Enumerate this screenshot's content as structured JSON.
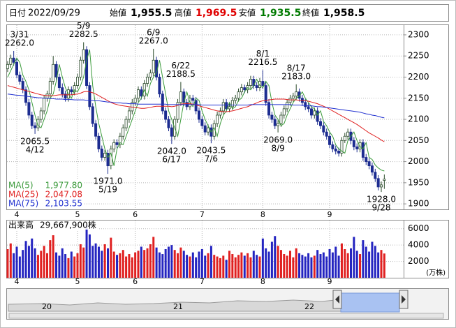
{
  "chart_data": {
    "type": "candlestick",
    "header": {
      "date_label": "日付",
      "date": "2022/09/29",
      "items": [
        {
          "label": "始値",
          "value": "1,955.5",
          "color": "#000000"
        },
        {
          "label": "高値",
          "value": "1,969.5",
          "color": "#e00000"
        },
        {
          "label": "安値",
          "value": "1,935.5",
          "color": "#007a00"
        },
        {
          "label": "終値",
          "value": "1,958.5",
          "color": "#000000"
        }
      ]
    },
    "categories": [
      null,
      null,
      null,
      "4",
      null,
      null,
      null,
      null,
      null,
      null,
      null,
      null,
      null,
      null,
      null,
      null,
      null,
      null,
      null,
      null,
      null,
      null,
      null,
      "5",
      null,
      null,
      null,
      null,
      null,
      null,
      null,
      null,
      null,
      null,
      null,
      null,
      null,
      null,
      null,
      null,
      null,
      null,
      "6",
      null,
      null,
      null,
      null,
      null,
      null,
      null,
      null,
      null,
      null,
      null,
      null,
      null,
      null,
      null,
      null,
      null,
      null,
      null,
      null,
      null,
      "7",
      null,
      null,
      null,
      null,
      null,
      null,
      null,
      null,
      null,
      null,
      null,
      null,
      null,
      null,
      null,
      null,
      null,
      null,
      null,
      "8",
      null,
      null,
      null,
      null,
      null,
      null,
      null,
      null,
      null,
      null,
      null,
      null,
      null,
      null,
      null,
      null,
      null,
      null,
      null,
      null,
      null,
      "9",
      null,
      null,
      null,
      null,
      null,
      null,
      null,
      null,
      null,
      null,
      null,
      null,
      null,
      null,
      null,
      null,
      null,
      null
    ],
    "open": [
      2220,
      2230,
      2245,
      2235,
      2205,
      2190,
      2170,
      2140,
      2110,
      2085,
      2080,
      2100,
      2120,
      2150,
      2160,
      2190,
      2230,
      2200,
      2175,
      2160,
      2150,
      2170,
      2165,
      2180,
      2200,
      2240,
      2265,
      2180,
      2130,
      2090,
      2060,
      2030,
      2010,
      2020,
      1990,
      2030,
      2045,
      2040,
      2060,
      2080,
      2100,
      2120,
      2140,
      2150,
      2170,
      2155,
      2185,
      2200,
      2210,
      2240,
      2200,
      2160,
      2120,
      2100,
      2080,
      2060,
      2100,
      2140,
      2165,
      2140,
      2130,
      2150,
      2145,
      2120,
      2100,
      2085,
      2070,
      2080,
      2060,
      2090,
      2110,
      2120,
      2140,
      2125,
      2130,
      2145,
      2150,
      2165,
      2175,
      2170,
      2180,
      2195,
      2180,
      2175,
      2190,
      2180,
      2140,
      2110,
      2100,
      2085,
      2090,
      2110,
      2125,
      2140,
      2150,
      2155,
      2165,
      2150,
      2140,
      2130,
      2125,
      2110,
      2120,
      2095,
      2085,
      2070,
      2060,
      2040,
      2030,
      2025,
      2020,
      2050,
      2060,
      2070,
      2050,
      2035,
      2030,
      2045,
      2010,
      2000,
      1990,
      1975,
      1960,
      1940,
      1955.5
    ],
    "high": [
      2238,
      2253,
      2262.0,
      2243,
      2213,
      2198,
      2178,
      2148,
      2118,
      2093,
      2108,
      2128,
      2158,
      2168,
      2198,
      2250,
      2238,
      2208,
      2185,
      2168,
      2178,
      2178,
      2188,
      2208,
      2248,
      2282.5,
      2273,
      2188,
      2138,
      2098,
      2068,
      2038,
      2028,
      2028,
      2038,
      2053,
      2053,
      2068,
      2088,
      2108,
      2128,
      2148,
      2158,
      2178,
      2178,
      2193,
      2208,
      2218,
      2267.0,
      2248,
      2208,
      2168,
      2128,
      2108,
      2088,
      2108,
      2148,
      2188.5,
      2173,
      2148,
      2158,
      2158,
      2153,
      2128,
      2108,
      2093,
      2088,
      2088,
      2098,
      2118,
      2128,
      2148,
      2148,
      2138,
      2153,
      2158,
      2173,
      2184,
      2182,
      2188,
      2203,
      2203,
      2188,
      2198,
      2216.5,
      2188,
      2148,
      2118,
      2108,
      2098,
      2118,
      2133,
      2148,
      2158,
      2163,
      2183.0,
      2173,
      2158,
      2148,
      2138,
      2133,
      2128,
      2128,
      2103,
      2093,
      2078,
      2068,
      2048,
      2038,
      2033,
      2058,
      2068,
      2078,
      2078,
      2058,
      2043,
      2053,
      2053,
      2018,
      2008,
      1998,
      1983,
      1968,
      1953,
      1969.5
    ],
    "low": [
      2212,
      2222,
      2227,
      2197,
      2182,
      2162,
      2132,
      2102,
      2077,
      2065.5,
      2072,
      2092,
      2112,
      2142,
      2152,
      2182,
      2192,
      2167,
      2152,
      2142,
      2142,
      2157,
      2157,
      2172,
      2192,
      2232,
      2172,
      2122,
      2082,
      2052,
      2022,
      2002,
      2002,
      1971.0,
      1982,
      2022,
      2032,
      2032,
      2052,
      2072,
      2092,
      2112,
      2132,
      2142,
      2147,
      2147,
      2177,
      2192,
      2202,
      2192,
      2152,
      2112,
      2092,
      2072,
      2042.0,
      2052,
      2092,
      2132,
      2132,
      2122,
      2122,
      2137,
      2112,
      2092,
      2077,
      2062,
      2062,
      2043.5,
      2052,
      2082,
      2102,
      2112,
      2117,
      2117,
      2122,
      2137,
      2142,
      2157,
      2162,
      2162,
      2172,
      2172,
      2167,
      2167,
      2172,
      2132,
      2102,
      2092,
      2077,
      2069.0,
      2082,
      2102,
      2117,
      2132,
      2142,
      2147,
      2142,
      2132,
      2122,
      2117,
      2102,
      2102,
      2087,
      2077,
      2062,
      2052,
      2032,
      2022,
      2017,
      2012,
      2012,
      2044,
      2052,
      2041,
      2027,
      2022,
      2022,
      2002,
      1992,
      1982,
      1967,
      1952,
      1932,
      1928.0,
      1935.5
    ],
    "close": [
      2230,
      2245,
      2235,
      2205,
      2190,
      2170,
      2140,
      2110,
      2085,
      2080,
      2100,
      2120,
      2150,
      2160,
      2190,
      2230,
      2200,
      2175,
      2160,
      2150,
      2170,
      2165,
      2180,
      2200,
      2240,
      2265,
      2180,
      2130,
      2090,
      2060,
      2030,
      2010,
      2020,
      1990,
      2030,
      2045,
      2040,
      2060,
      2080,
      2100,
      2120,
      2140,
      2150,
      2170,
      2155,
      2185,
      2200,
      2210,
      2240,
      2200,
      2160,
      2120,
      2100,
      2080,
      2060,
      2100,
      2140,
      2165,
      2140,
      2130,
      2150,
      2145,
      2120,
      2100,
      2085,
      2070,
      2080,
      2060,
      2090,
      2110,
      2120,
      2140,
      2125,
      2130,
      2145,
      2150,
      2165,
      2175,
      2170,
      2180,
      2195,
      2180,
      2175,
      2190,
      2180,
      2140,
      2110,
      2100,
      2085,
      2090,
      2110,
      2125,
      2140,
      2150,
      2155,
      2165,
      2150,
      2140,
      2130,
      2125,
      2110,
      2120,
      2095,
      2085,
      2070,
      2060,
      2040,
      2030,
      2025,
      2020,
      2050,
      2060,
      2070,
      2050,
      2035,
      2030,
      2045,
      2010,
      2000,
      1990,
      1975,
      1960,
      1940,
      1945,
      1958.5
    ],
    "up_color": "#2a4a2a",
    "down_color": "#1c2c90",
    "ylim": [
      1887,
      2323
    ],
    "yticks": [
      1900,
      1950,
      2000,
      2050,
      2100,
      2150,
      2200,
      2250,
      2300
    ],
    "grid": true,
    "moving_averages": [
      {
        "name": "MA(5)",
        "color": "#3a9a3a",
        "current": "1,977.80",
        "values": [
          2200,
          2215,
          2230,
          2245,
          2235,
          2205,
          2190,
          2170,
          2140,
          2110,
          2085,
          2080,
          2100,
          2120,
          2150,
          2160,
          2190,
          2230,
          2200,
          2175,
          2160,
          2150,
          2170,
          2165,
          2180,
          2200,
          2240,
          2265,
          2180,
          2130,
          2090,
          2060,
          2030,
          2010,
          2020,
          1990,
          2030,
          2045,
          2040,
          2060,
          2080,
          2100,
          2120,
          2140,
          2150,
          2170,
          2155,
          2185,
          2200,
          2210,
          2240,
          2200,
          2160,
          2120,
          2100,
          2080,
          2060,
          2100,
          2140,
          2165,
          2140,
          2130,
          2150,
          2145,
          2120,
          2100,
          2085,
          2070,
          2080,
          2060,
          2090,
          2110,
          2120,
          2140,
          2125,
          2130,
          2145,
          2150,
          2165,
          2175,
          2170,
          2180,
          2195,
          2180,
          2175,
          2190,
          2180,
          2140,
          2110,
          2100,
          2085,
          2090,
          2110,
          2125,
          2140,
          2150,
          2155,
          2165,
          2150,
          2140,
          2130,
          2125,
          2110,
          2120,
          2095,
          2085,
          2070,
          2060,
          2040,
          2030,
          2025,
          2020,
          2050,
          2060,
          2070,
          2050,
          2035,
          2030,
          2045,
          2010,
          2005,
          1992,
          1985,
          1980,
          1977.8
        ]
      },
      {
        "name": "MA(25)",
        "color": "#e02020",
        "current": "2,047.08",
        "values": [
          2180,
          2178,
          2176,
          2174,
          2172,
          2170,
          2168,
          2166,
          2164,
          2162,
          2160,
          2158,
          2157,
          2156,
          2156,
          2156,
          2157,
          2158,
          2158,
          2158,
          2158,
          2158,
          2159,
          2160,
          2162,
          2165,
          2166,
          2165,
          2163,
          2160,
          2156,
          2152,
          2148,
          2144,
          2140,
          2137,
          2135,
          2133,
          2132,
          2131,
          2130,
          2129,
          2128,
          2127,
          2126,
          2126,
          2127,
          2128,
          2130,
          2131,
          2131,
          2131,
          2131,
          2131,
          2130,
          2131,
          2133,
          2136,
          2137,
          2137,
          2137,
          2136,
          2134,
          2132,
          2130,
          2128,
          2126,
          2124,
          2122,
          2120,
          2119,
          2118,
          2118,
          2119,
          2120,
          2122,
          2124,
          2126,
          2128,
          2130,
          2133,
          2136,
          2139,
          2142,
          2144,
          2145,
          2146,
          2147,
          2148,
          2148,
          2148,
          2148,
          2147,
          2146,
          2146,
          2146,
          2145,
          2145,
          2144,
          2143,
          2141,
          2139,
          2137,
          2134,
          2131,
          2128,
          2124,
          2120,
          2116,
          2112,
          2108,
          2104,
          2100,
          2096,
          2092,
          2088,
          2083,
          2078,
          2073,
          2068,
          2064,
          2060,
          2056,
          2051,
          2047.08
        ]
      },
      {
        "name": "MA(75)",
        "color": "#2030d0",
        "current": "2,103.55",
        "values": [
          2160,
          2159,
          2158,
          2157,
          2157,
          2156,
          2155,
          2154,
          2153,
          2152,
          2151,
          2151,
          2150,
          2150,
          2149,
          2149,
          2148,
          2148,
          2148,
          2147,
          2147,
          2147,
          2146,
          2146,
          2146,
          2146,
          2145,
          2145,
          2145,
          2144,
          2144,
          2143,
          2142,
          2141,
          2141,
          2140,
          2139,
          2139,
          2138,
          2138,
          2137,
          2137,
          2137,
          2136,
          2136,
          2136,
          2136,
          2136,
          2136,
          2136,
          2136,
          2136,
          2136,
          2135,
          2135,
          2135,
          2135,
          2135,
          2135,
          2135,
          2135,
          2135,
          2135,
          2135,
          2134,
          2134,
          2134,
          2134,
          2134,
          2134,
          2134,
          2134,
          2134,
          2134,
          2134,
          2134,
          2134,
          2134,
          2134,
          2134,
          2135,
          2135,
          2135,
          2135,
          2135,
          2135,
          2135,
          2135,
          2135,
          2135,
          2135,
          2135,
          2135,
          2135,
          2134,
          2134,
          2134,
          2133,
          2133,
          2132,
          2132,
          2131,
          2130,
          2130,
          2129,
          2128,
          2127,
          2126,
          2125,
          2124,
          2123,
          2122,
          2121,
          2120,
          2119,
          2118,
          2117,
          2115,
          2113,
          2112,
          2110,
          2109,
          2107,
          2105,
          2103.55
        ]
      }
    ],
    "annotations": [
      {
        "date": "3/31",
        "value": 2262.0,
        "value_label": "2262.0"
      },
      {
        "date": "4/12",
        "value": 2065.5,
        "value_label": "2065.5"
      },
      {
        "date": "5/9",
        "value": 2282.5,
        "value_label": "2282.5"
      },
      {
        "date": "5/19",
        "value": 1971.0,
        "value_label": "1971.0"
      },
      {
        "date": "6/9",
        "value": 2267.0,
        "value_label": "2267.0"
      },
      {
        "date": "6/17",
        "value": 2042.0,
        "value_label": "2042.0"
      },
      {
        "date": "6/22",
        "value": 2188.5,
        "value_label": "2188.5"
      },
      {
        "date": "7/6",
        "value": 2043.5,
        "value_label": "2043.5"
      },
      {
        "date": "8/1",
        "value": 2216.5,
        "value_label": "2216.5"
      },
      {
        "date": "8/9",
        "value": 2069.0,
        "value_label": "2069.0"
      },
      {
        "date": "8/17",
        "value": 2183.0,
        "value_label": "2183.0"
      },
      {
        "date": "9/28",
        "value": 1928.0,
        "value_label": "1928.0"
      }
    ],
    "volume": {
      "title": "出来高",
      "current": "29,667,900株",
      "unit": "(万株)",
      "up_color": "#e02020",
      "down_color": "#2424c0",
      "ylim": [
        0,
        7000
      ],
      "yticks": [
        2000,
        4000,
        6000
      ],
      "values": [
        3500,
        4200,
        3000,
        3800,
        2600,
        3400,
        4500,
        3900,
        4800,
        3600,
        2800,
        3300,
        3900,
        3000,
        4600,
        5200,
        3100,
        2700,
        3600,
        2900,
        2400,
        3200,
        2600,
        3000,
        4100,
        3700,
        6500,
        5300,
        3900,
        4200,
        3800,
        3300,
        4100,
        3600,
        4900,
        3200,
        2800,
        3000,
        3400,
        2600,
        2900,
        2500,
        3100,
        3300,
        3800,
        3400,
        3600,
        4100,
        5000,
        3700,
        3100,
        2900,
        3500,
        3800,
        4000,
        3400,
        3000,
        3700,
        3300,
        2800,
        2600,
        3100,
        2500,
        3200,
        3500,
        2700,
        3000,
        3900,
        2800,
        2600,
        2400,
        2700,
        2200,
        3300,
        2900,
        2500,
        2800,
        3100,
        2700,
        3000,
        2500,
        3300,
        2800,
        2600,
        4800,
        3600,
        3200,
        4400,
        5100,
        3900,
        3400,
        2900,
        2700,
        3300,
        2500,
        3600,
        3000,
        2800,
        2600,
        3000,
        2500,
        2700,
        3400,
        2900,
        3100,
        2600,
        3500,
        3100,
        3800,
        2700,
        4200,
        3500,
        3000,
        3600,
        5000,
        3300,
        2900,
        4600,
        3800,
        3200,
        4400,
        3900,
        3100,
        3400,
        2966.79
      ]
    },
    "navigator": {
      "labels": [
        "20",
        "21",
        "22"
      ]
    }
  }
}
